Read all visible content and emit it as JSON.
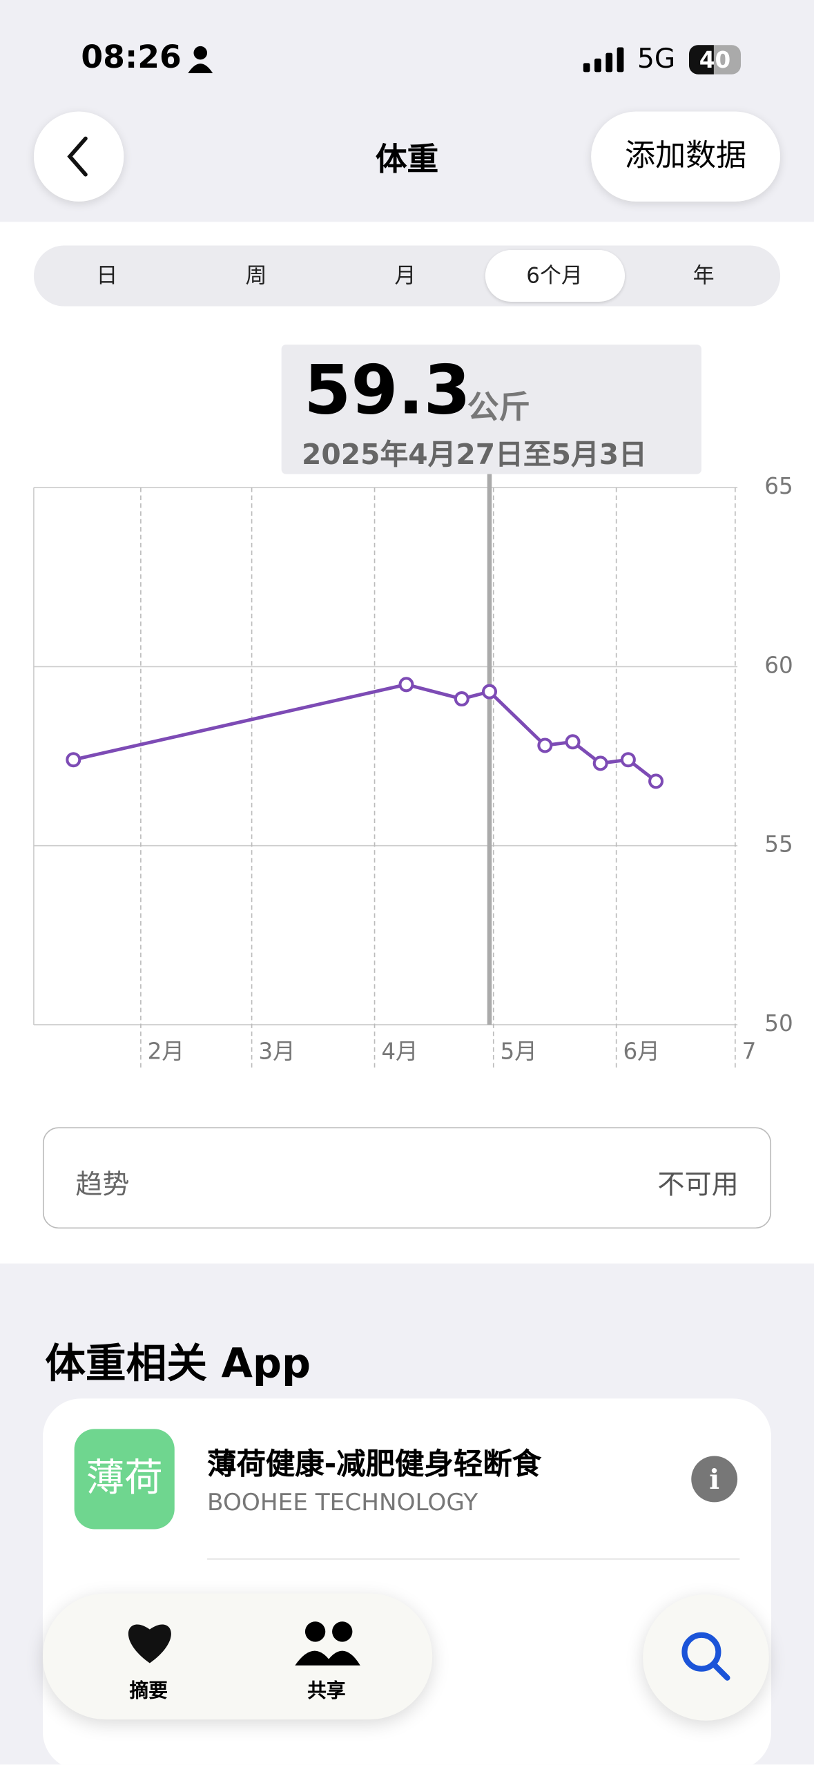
{
  "status_bar": {
    "time": "08:26",
    "network": "5G",
    "battery": "40"
  },
  "nav": {
    "title": "体重",
    "action": "添加数据"
  },
  "tabs": {
    "items": [
      "日",
      "周",
      "月",
      "6个月",
      "年"
    ],
    "selected": 3
  },
  "chart_data": {
    "type": "line",
    "tooltip": {
      "unit": "公斤",
      "range": "2025年4月27日至5月3日",
      "selected_index": 3
    },
    "x": [
      15,
      99,
      113,
      120,
      134,
      141,
      148,
      155,
      162
    ],
    "series": [
      {
        "color": "#7d4bb5",
        "values": [
          57.4,
          59.5,
          59.1,
          59.3,
          57.8,
          57.9,
          57.3,
          57.4,
          56.8
        ]
      }
    ],
    "xlim": [
      5,
      182
    ],
    "xticks": [
      {
        "value": 32,
        "label": "2月"
      },
      {
        "value": 60,
        "label": "3月"
      },
      {
        "value": 91,
        "label": "4月"
      },
      {
        "value": 121,
        "label": "5月"
      },
      {
        "value": 152,
        "label": "6月"
      },
      {
        "value": 182,
        "label": "7"
      }
    ],
    "ylim": [
      50,
      65
    ],
    "yticks": [
      50,
      55,
      60,
      65
    ],
    "grid": true
  },
  "trend": {
    "label": "趋势",
    "value": "不可用"
  },
  "apps": {
    "title": "体重相关 App",
    "items": [
      {
        "icon": "薄荷",
        "name": "薄荷健康-减肥健身轻断食",
        "developer": "BOOHEE TECHNOLOGY"
      }
    ]
  },
  "tab_bar": {
    "items": [
      "摘要",
      "共享"
    ]
  }
}
